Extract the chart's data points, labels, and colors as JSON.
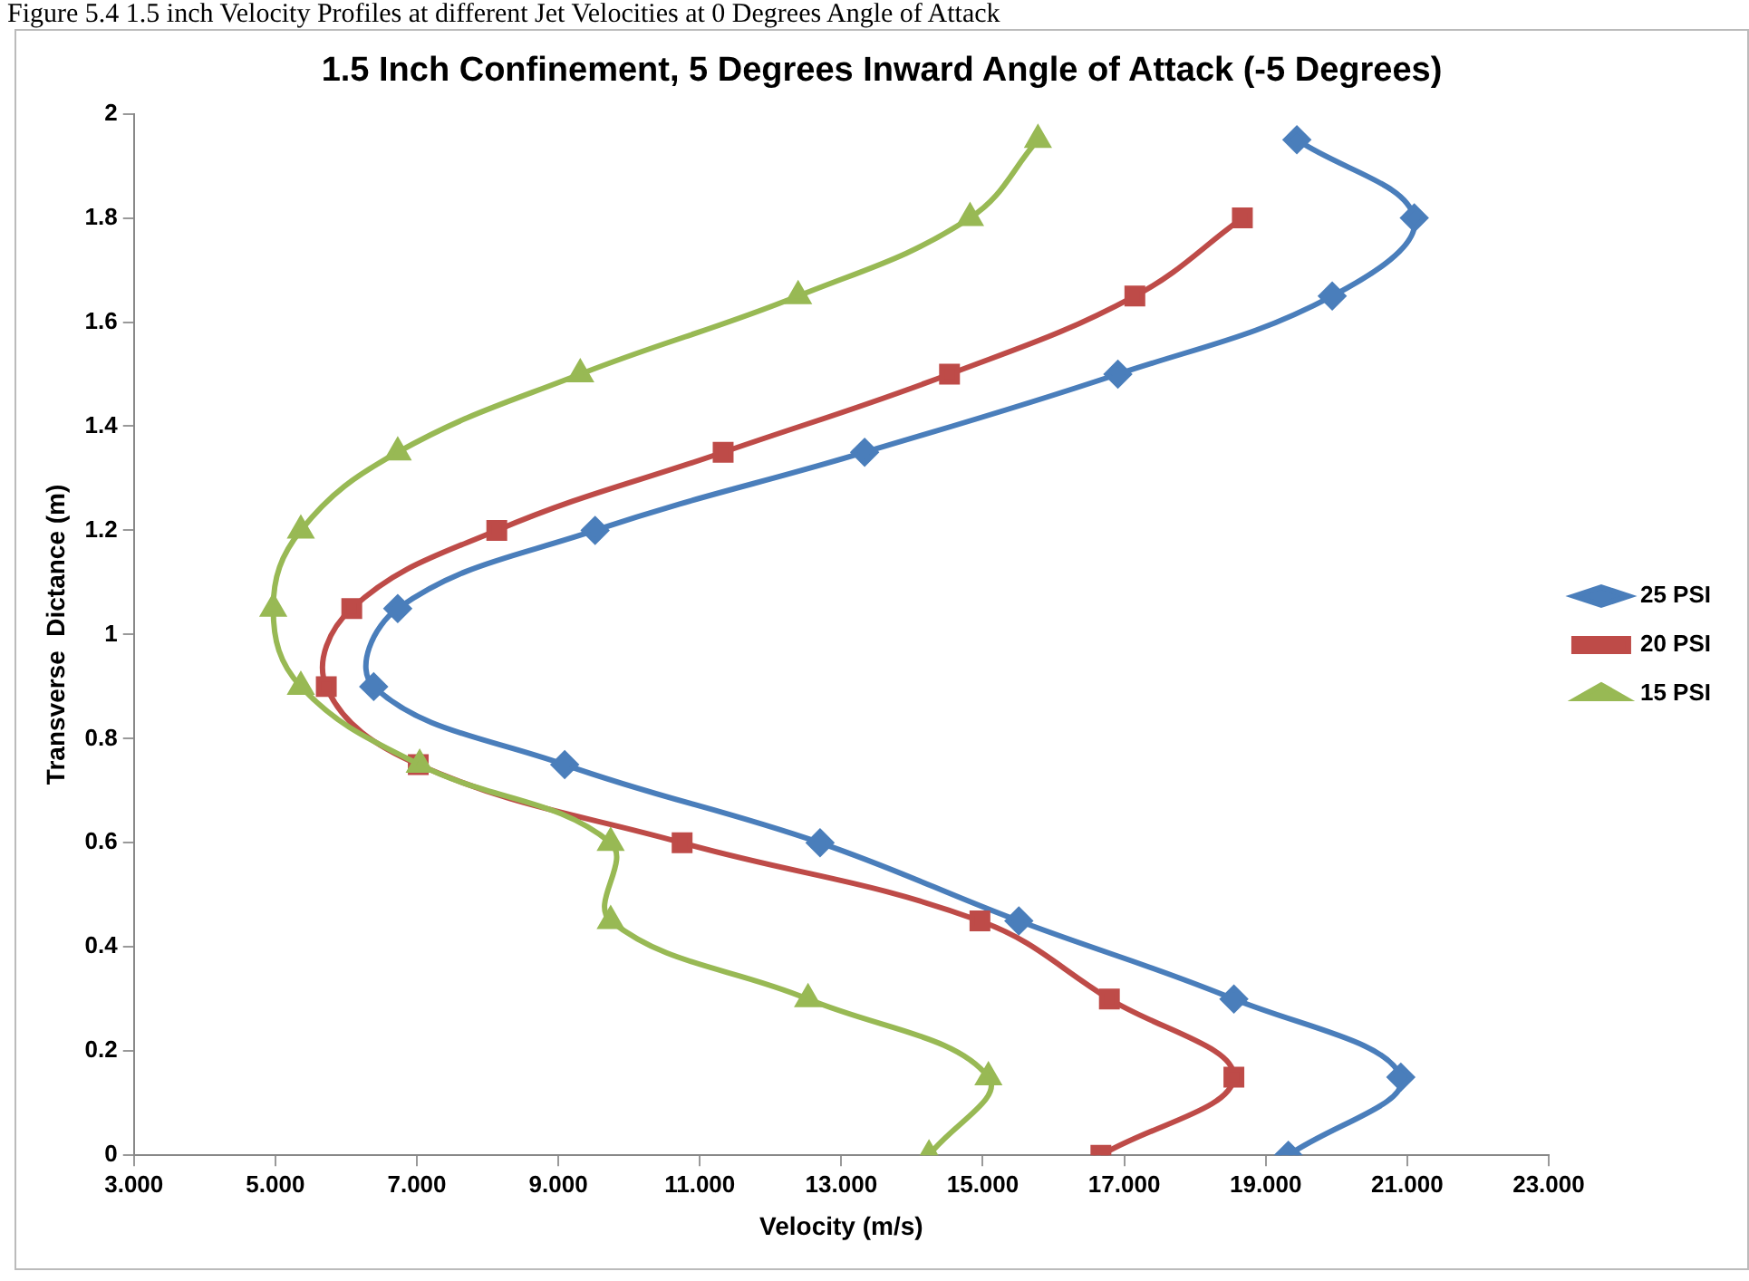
{
  "chart_data": {
    "type": "line",
    "title": "1.5 Inch Confinement, 5 Degrees Inward Angle of Attack (-5 Degrees)",
    "xlabel": "Velocity (m/s)",
    "ylabel": "Transverse  Dictance (m)",
    "annotations": [
      "Figure 5.4 1.5 inch Velocity Profiles at different Jet Velocities at 0 Degrees Angle of Attack"
    ],
    "xlim": [
      3,
      23
    ],
    "xticks": [
      {
        "value": 3,
        "label": "3.000"
      },
      {
        "value": 5,
        "label": "5.000"
      },
      {
        "value": 7,
        "label": "7.000"
      },
      {
        "value": 9,
        "label": "9.000"
      },
      {
        "value": 11,
        "label": "11.000"
      },
      {
        "value": 13,
        "label": "13.000"
      },
      {
        "value": 15,
        "label": "15.000"
      },
      {
        "value": 17,
        "label": "17.000"
      },
      {
        "value": 19,
        "label": "19.000"
      },
      {
        "value": 21,
        "label": "21.000"
      },
      {
        "value": 23,
        "label": "23.000"
      }
    ],
    "ylim": [
      0,
      2
    ],
    "yticks": [
      0,
      0.2,
      0.4,
      0.6,
      0.8,
      1,
      1.2,
      1.4,
      1.6,
      1.8,
      2
    ],
    "grid": false,
    "legend": "right",
    "series": [
      {
        "name": "25 PSI",
        "color": "#4a7ebb",
        "marker": "diamond",
        "x": [
          19.44,
          21.1,
          19.94,
          16.91,
          13.33,
          9.52,
          6.73,
          6.39,
          9.09,
          12.7,
          15.51,
          18.55,
          20.91,
          19.32
        ],
        "values": [
          1.95,
          1.8,
          1.65,
          1.5,
          1.35,
          1.2,
          1.05,
          0.9,
          0.75,
          0.6,
          0.45,
          0.3,
          0.15,
          0
        ]
      },
      {
        "name": "20 PSI",
        "color": "#be4b48",
        "marker": "square",
        "x": [
          18.67,
          17.15,
          14.53,
          11.33,
          8.13,
          6.08,
          5.72,
          7.02,
          10.75,
          14.96,
          16.79,
          18.55,
          16.67
        ],
        "values": [
          1.8,
          1.65,
          1.5,
          1.35,
          1.2,
          1.05,
          0.9,
          0.75,
          0.6,
          0.45,
          0.3,
          0.15,
          0
        ]
      },
      {
        "name": "15 PSI",
        "color": "#98b954",
        "marker": "triangle",
        "x": [
          15.78,
          14.82,
          12.39,
          9.31,
          6.73,
          5.36,
          4.97,
          5.36,
          7.04,
          9.74,
          9.74,
          12.53,
          15.08,
          14.24
        ],
        "values": [
          1.95,
          1.8,
          1.65,
          1.5,
          1.35,
          1.2,
          1.05,
          0.9,
          0.75,
          0.6,
          0.45,
          0.3,
          0.15,
          0
        ]
      }
    ]
  }
}
